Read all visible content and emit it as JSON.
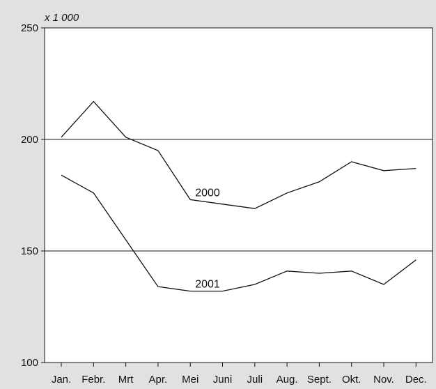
{
  "chart_data": {
    "type": "line",
    "unit_label": "x 1 000",
    "categories": [
      "Jan.",
      "Febr.",
      "Mrt",
      "Apr.",
      "Mei",
      "Juni",
      "Juli",
      "Aug.",
      "Sept.",
      "Okt.",
      "Nov.",
      "Dec."
    ],
    "yticks": [
      100,
      150,
      200,
      250
    ],
    "ylim": [
      100,
      250
    ],
    "gridlines": [
      150,
      200
    ],
    "series": [
      {
        "name": "2000",
        "values": [
          201,
          217,
          201,
          195,
          173,
          171,
          169,
          176,
          181,
          190,
          186,
          187
        ]
      },
      {
        "name": "2001",
        "values": [
          184,
          176,
          155,
          134,
          132,
          132,
          135,
          141,
          140,
          141,
          135,
          146
        ]
      }
    ],
    "colors": {
      "background": "#e1e1e1",
      "plot": "#ffffff",
      "line": "#111111"
    }
  }
}
